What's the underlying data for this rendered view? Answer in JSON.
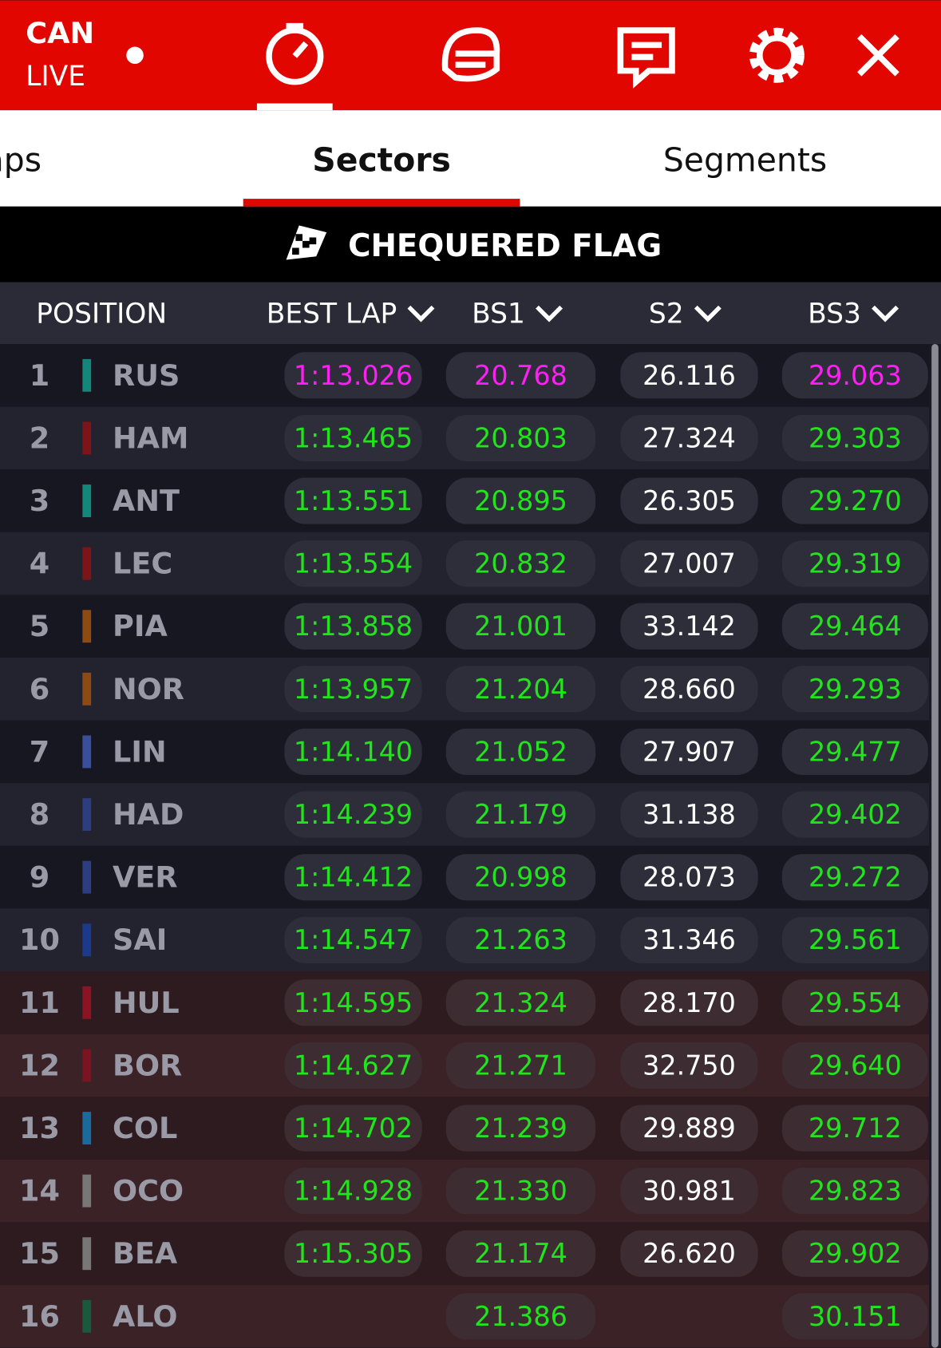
{
  "header": {
    "event": "CAN",
    "status": "LIVE"
  },
  "tabs": {
    "items": [
      "Laps",
      "Sectors",
      "Segments"
    ],
    "active": 1
  },
  "banner": "CHEQUERED FLAG",
  "columns": [
    "POSITION",
    "BEST LAP",
    "BS1",
    "S2",
    "BS3"
  ],
  "status_colors": {
    "purple": "#ff1ff5",
    "green": "#22e41c",
    "white": "#ffffff"
  },
  "rows": [
    {
      "position": "1",
      "code": "RUS",
      "team_color": "#12877a",
      "best_lap": "1:13.026",
      "bs1": "20.768",
      "s2": "26.116",
      "bs3": "29.063",
      "status": [
        "purple",
        "purple",
        "white",
        "purple"
      ]
    },
    {
      "position": "2",
      "code": "HAM",
      "team_color": "#7d1418",
      "best_lap": "1:13.465",
      "bs1": "20.803",
      "s2": "27.324",
      "bs3": "29.303",
      "status": [
        "green",
        "green",
        "white",
        "green"
      ]
    },
    {
      "position": "3",
      "code": "ANT",
      "team_color": "#12877a",
      "best_lap": "1:13.551",
      "bs1": "20.895",
      "s2": "26.305",
      "bs3": "29.270",
      "status": [
        "green",
        "green",
        "white",
        "green"
      ]
    },
    {
      "position": "4",
      "code": "LEC",
      "team_color": "#7d1418",
      "best_lap": "1:13.554",
      "bs1": "20.832",
      "s2": "27.007",
      "bs3": "29.319",
      "status": [
        "green",
        "green",
        "white",
        "green"
      ]
    },
    {
      "position": "5",
      "code": "PIA",
      "team_color": "#8f4a14",
      "best_lap": "1:13.858",
      "bs1": "21.001",
      "s2": "33.142",
      "bs3": "29.464",
      "status": [
        "green",
        "green",
        "white",
        "green"
      ]
    },
    {
      "position": "6",
      "code": "NOR",
      "team_color": "#8f4a14",
      "best_lap": "1:13.957",
      "bs1": "21.204",
      "s2": "28.660",
      "bs3": "29.293",
      "status": [
        "green",
        "green",
        "white",
        "green"
      ]
    },
    {
      "position": "7",
      "code": "LIN",
      "team_color": "#3a4f9c",
      "best_lap": "1:14.140",
      "bs1": "21.052",
      "s2": "27.907",
      "bs3": "29.477",
      "status": [
        "green",
        "green",
        "white",
        "green"
      ]
    },
    {
      "position": "8",
      "code": "HAD",
      "team_color": "#2c3d80",
      "best_lap": "1:14.239",
      "bs1": "21.179",
      "s2": "31.138",
      "bs3": "29.402",
      "status": [
        "green",
        "green",
        "white",
        "green"
      ]
    },
    {
      "position": "9",
      "code": "VER",
      "team_color": "#2c3d80",
      "best_lap": "1:14.412",
      "bs1": "20.998",
      "s2": "28.073",
      "bs3": "29.272",
      "status": [
        "green",
        "green",
        "white",
        "green"
      ]
    },
    {
      "position": "10",
      "code": "SAI",
      "team_color": "#1b3a8c",
      "best_lap": "1:14.547",
      "bs1": "21.263",
      "s2": "31.346",
      "bs3": "29.561",
      "status": [
        "green",
        "green",
        "white",
        "green"
      ]
    },
    {
      "position": "11",
      "code": "HUL",
      "team_color": "#8a1424",
      "best_lap": "1:14.595",
      "bs1": "21.324",
      "s2": "28.170",
      "bs3": "29.554",
      "status": [
        "green",
        "green",
        "white",
        "green"
      ]
    },
    {
      "position": "12",
      "code": "BOR",
      "team_color": "#7a1420",
      "best_lap": "1:14.627",
      "bs1": "21.271",
      "s2": "32.750",
      "bs3": "29.640",
      "status": [
        "green",
        "green",
        "white",
        "green"
      ]
    },
    {
      "position": "13",
      "code": "COL",
      "team_color": "#1a6a9c",
      "best_lap": "1:14.702",
      "bs1": "21.239",
      "s2": "29.889",
      "bs3": "29.712",
      "status": [
        "green",
        "green",
        "white",
        "green"
      ]
    },
    {
      "position": "14",
      "code": "OCO",
      "team_color": "#777777",
      "best_lap": "1:14.928",
      "bs1": "21.330",
      "s2": "30.981",
      "bs3": "29.823",
      "status": [
        "green",
        "green",
        "white",
        "green"
      ]
    },
    {
      "position": "15",
      "code": "BEA",
      "team_color": "#777777",
      "best_lap": "1:15.305",
      "bs1": "21.174",
      "s2": "26.620",
      "bs3": "29.902",
      "status": [
        "green",
        "green",
        "white",
        "green"
      ]
    },
    {
      "position": "16",
      "code": "ALO",
      "team_color": "#1a5a3c",
      "bs1": "21.386",
      "bs3": "30.151",
      "status": [
        "green",
        "green",
        "white",
        "green"
      ]
    }
  ]
}
